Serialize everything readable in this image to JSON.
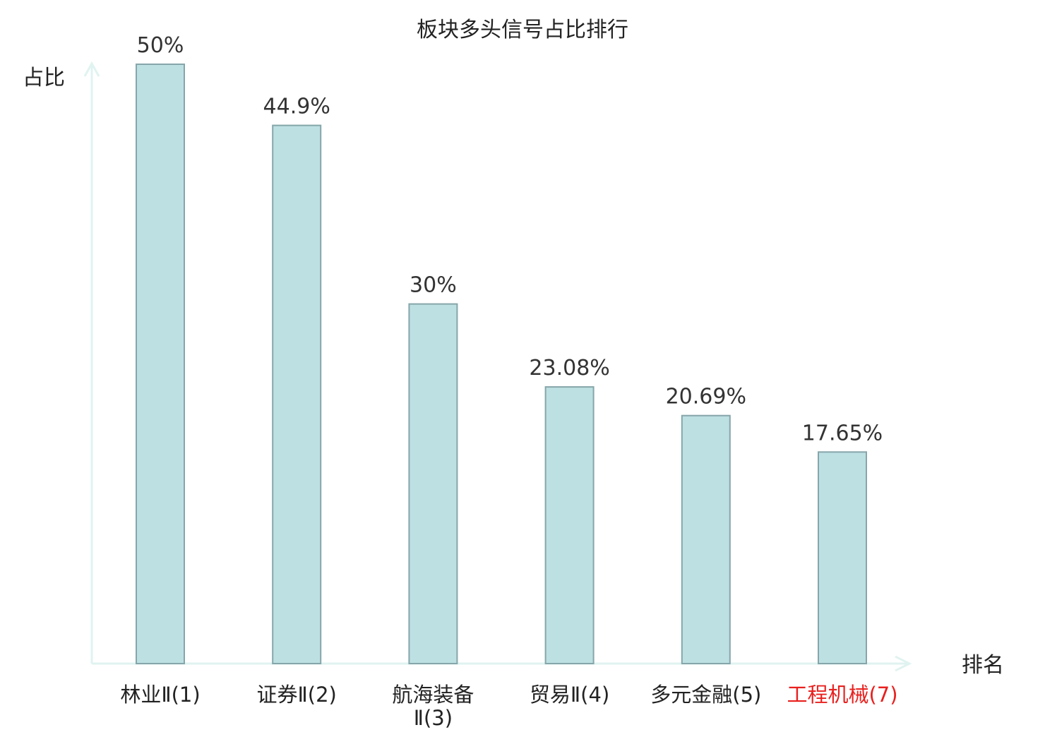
{
  "chart_data": {
    "type": "bar",
    "title": "板块多头信号占比排行",
    "xlabel": "排名",
    "ylabel": "占比",
    "categories": [
      {
        "label": "林业Ⅱ(1)",
        "lines": [
          "林业Ⅱ(1)"
        ],
        "highlight": false
      },
      {
        "label": "证券Ⅱ(2)",
        "lines": [
          "证券Ⅱ(2)"
        ],
        "highlight": false
      },
      {
        "label": "航海装备Ⅱ(3)",
        "lines": [
          "航海装备",
          "Ⅱ(3)"
        ],
        "highlight": false
      },
      {
        "label": "贸易Ⅱ(4)",
        "lines": [
          "贸易Ⅱ(4)"
        ],
        "highlight": false
      },
      {
        "label": "多元金融(5)",
        "lines": [
          "多元金融(5)"
        ],
        "highlight": false
      },
      {
        "label": "工程机械(7)",
        "lines": [
          "工程机械(7)"
        ],
        "highlight": true
      }
    ],
    "values": [
      50,
      44.9,
      30,
      23.08,
      20.69,
      17.65
    ],
    "value_labels": [
      "50%",
      "44.9%",
      "30%",
      "23.08%",
      "20.69%",
      "17.65%"
    ],
    "ylim": [
      0,
      50
    ],
    "grid": false,
    "legend": "none",
    "colors": {
      "bar_fill": "#bde0e3",
      "bar_stroke": "#86a6aa",
      "axis": "#e0f3f0",
      "text": "#222222",
      "value_label": "#333333",
      "highlight": "#e8201e"
    }
  }
}
